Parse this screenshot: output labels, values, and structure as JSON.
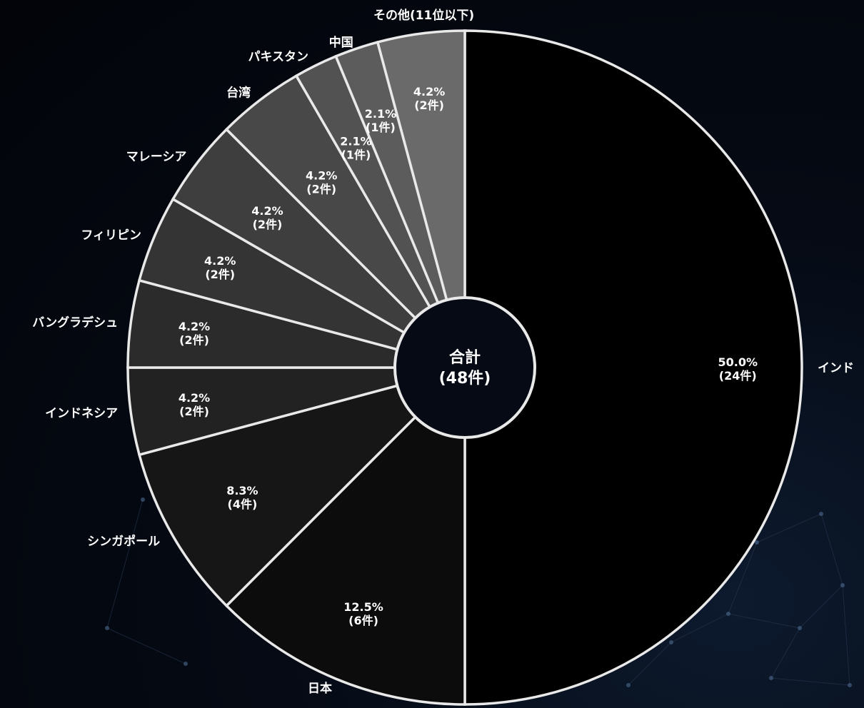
{
  "chart_data": {
    "type": "pie",
    "title": "",
    "center_label": {
      "line1": "合計",
      "line2": "(48件)"
    },
    "slices": [
      {
        "label": "インド",
        "value": 24,
        "percent_text": "50.0%",
        "count_text": "(24件)",
        "color": "#000000"
      },
      {
        "label": "日本",
        "value": 6,
        "percent_text": "12.5%",
        "count_text": "(6件)",
        "color": "#0c0c0c"
      },
      {
        "label": "シンガポール",
        "value": 4,
        "percent_text": "8.3%",
        "count_text": "(4件)",
        "color": "#161616"
      },
      {
        "label": "インドネシア",
        "value": 2,
        "percent_text": "4.2%",
        "count_text": "(2件)",
        "color": "#222222"
      },
      {
        "label": "バングラデシュ",
        "value": 2,
        "percent_text": "4.2%",
        "count_text": "(2件)",
        "color": "#2b2b2b"
      },
      {
        "label": "フィリピン",
        "value": 2,
        "percent_text": "4.2%",
        "count_text": "(2件)",
        "color": "#343434"
      },
      {
        "label": "マレーシア",
        "value": 2,
        "percent_text": "4.2%",
        "count_text": "(2件)",
        "color": "#3e3e3e"
      },
      {
        "label": "台湾",
        "value": 2,
        "percent_text": "4.2%",
        "count_text": "(2件)",
        "color": "#484848"
      },
      {
        "label": "パキスタン",
        "value": 1,
        "percent_text": "2.1%",
        "count_text": "(1件)",
        "color": "#525252"
      },
      {
        "label": "中国",
        "value": 1,
        "percent_text": "2.1%",
        "count_text": "(1件)",
        "color": "#5c5c5c"
      },
      {
        "label": "その他(11位以下)",
        "value": 2,
        "percent_text": "4.2%",
        "count_text": "(2件)",
        "color": "#6a6a6a"
      }
    ],
    "start_angle_deg": 0,
    "direction": "clockwise",
    "legend": "none"
  }
}
